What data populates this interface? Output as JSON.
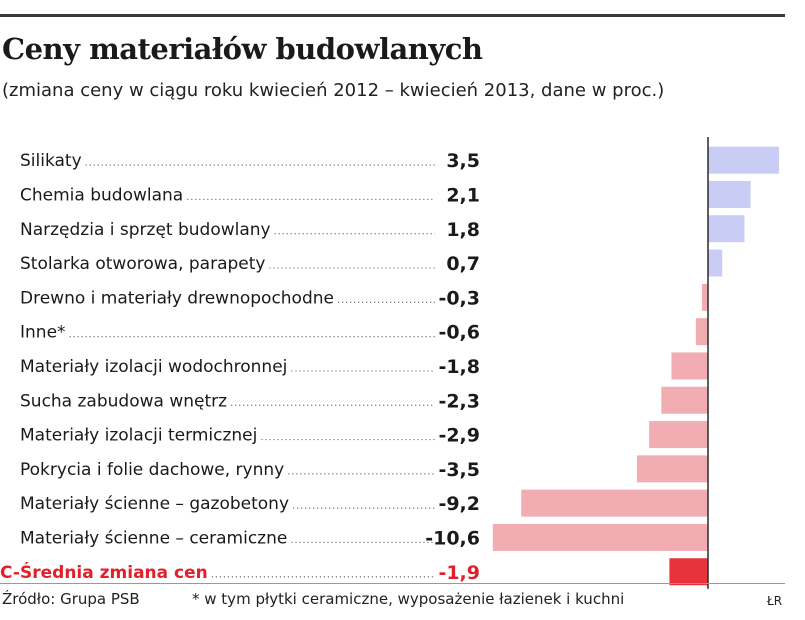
{
  "chart_data": {
    "type": "bar",
    "orientation": "horizontal",
    "title": "Ceny materiałów budowlanych",
    "subtitle": "(zmiana ceny w ciągu roku kwiecień 2012 – kwiecień 2013, dane w proc.)",
    "categories": [
      "Silikaty",
      "Chemia budowlana",
      "Narzędzia i sprzęt budowlany",
      "Stolarka otworowa, parapety",
      "Drewno i materiały drewnopochodne",
      "Inne*",
      "Materiały izolacji wodochronnej",
      "Sucha zabudowa wnętrz",
      "Materiały izolacji termicznej",
      "Pokrycia i folie dachowe, rynny",
      "Materiały ścienne – gazobetony",
      "Materiały ścienne – ceramiczne"
    ],
    "values": [
      3.5,
      2.1,
      1.8,
      0.7,
      -0.3,
      -0.6,
      -1.8,
      -2.3,
      -2.9,
      -3.5,
      -9.2,
      -10.6
    ],
    "value_labels": [
      "3,5",
      "2,1",
      "1,8",
      "0,7",
      "-0,3",
      "-0,6",
      "-1,8",
      "-2,3",
      "-2,9",
      "-3,5",
      "-9,2",
      "-10,6"
    ],
    "average": {
      "label": "Średnia zmiana cen",
      "value": -1.9,
      "value_label": "-1,9",
      "marker": "C-"
    },
    "colors": {
      "positive": "#c9ccf5",
      "negative": "#f2adb3",
      "average": "#e8323c",
      "average_text": "#e0202a"
    }
  },
  "footer": {
    "source": "Źródło: Grupa PSB",
    "note": "* w tym płytki ceramiczne, wyposażenie łazienek i kuchni",
    "initials": "ŁR"
  }
}
